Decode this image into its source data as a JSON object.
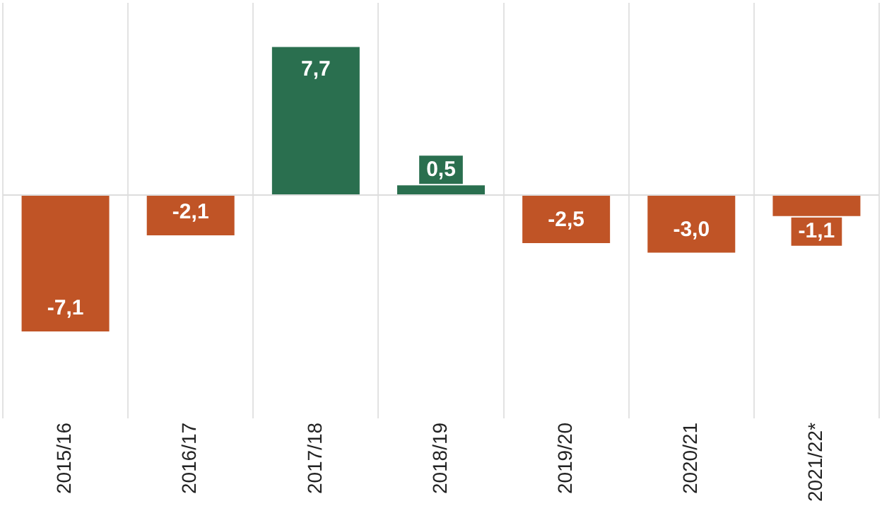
{
  "chart_data": {
    "type": "bar",
    "categories": [
      "2015/16",
      "2016/17",
      "2017/18",
      "2018/19",
      "2019/20",
      "2020/21",
      "2021/22*"
    ],
    "values": [
      -7.1,
      -2.1,
      7.7,
      0.5,
      -2.5,
      -3.0,
      -1.1
    ],
    "colors": [
      "#c05426",
      "#c05426",
      "#2a6f4f",
      "#2a6f4f",
      "#c05426",
      "#c05426",
      "#c05426"
    ],
    "value_labels": [
      "-7,1",
      "-2,1",
      "7,7",
      "0,5",
      "-2,5",
      "-3,0",
      "-1,1"
    ],
    "grid": "x"
  }
}
